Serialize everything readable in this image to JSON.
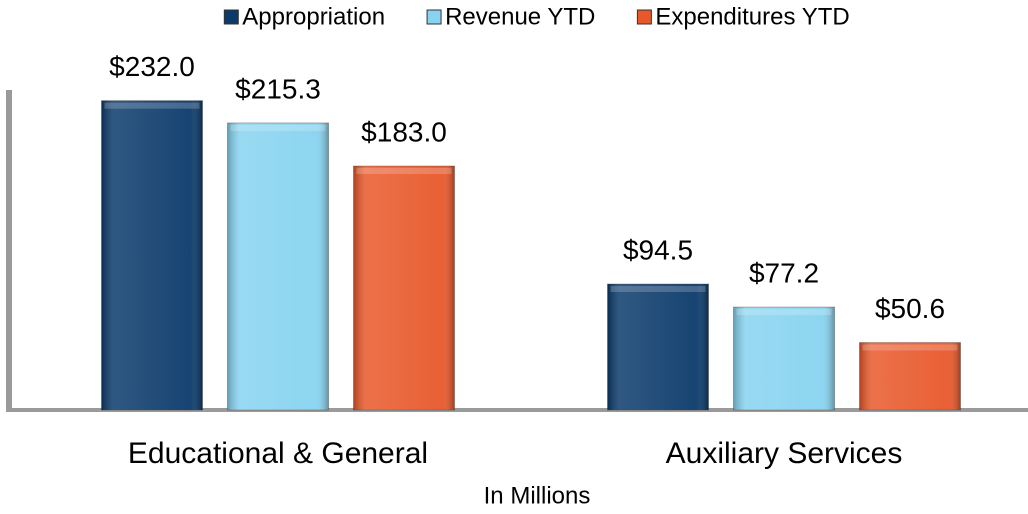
{
  "chart_data": {
    "type": "bar",
    "x_label": "In Millions",
    "categories": [
      "Educational & General",
      "Auxiliary Services"
    ],
    "series": [
      {
        "name": "Appropriation",
        "color": "#0b3a6b",
        "values": [
          232.0,
          94.5
        ],
        "value_labels": [
          "$232.0",
          "$94.5"
        ]
      },
      {
        "name": "Revenue YTD",
        "color": "#87d3f0",
        "values": [
          215.3,
          77.2
        ],
        "value_labels": [
          "$215.3",
          "$77.2"
        ]
      },
      {
        "name": "Expenditures YTD",
        "color": "#e8582a",
        "values": [
          183.0,
          50.6
        ],
        "value_labels": [
          "$183.0",
          "$50.6"
        ]
      }
    ],
    "ylim": [
      0,
      240
    ],
    "legend": "top"
  }
}
